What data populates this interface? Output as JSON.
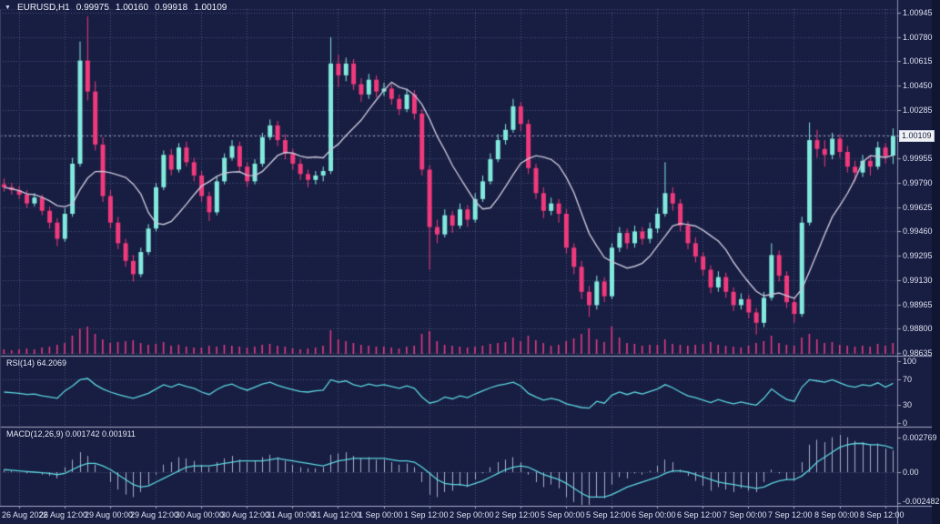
{
  "title": {
    "dropdown_icon": "▼",
    "symbol": "EURUSD,H1",
    "open": "0.99975",
    "high": "1.00160",
    "low": "0.99918",
    "close": "1.00109"
  },
  "main_panel": {
    "price_labels": [
      "1.00945",
      "1.00780",
      "1.00615",
      "1.00450",
      "1.00285",
      "0.99955",
      "0.99790",
      "0.99625",
      "0.99460",
      "0.99295",
      "0.99130",
      "0.98965",
      "0.98800",
      "0.98635"
    ],
    "current_price": "1.00109"
  },
  "rsi_panel": {
    "label": "RSI(14) 64.2069",
    "axis_labels": [
      "100",
      "70",
      "30",
      "0"
    ]
  },
  "macd_panel": {
    "label": "MACD(12,26,9) 0.001742 0.001911",
    "axis_labels": [
      "0.002769",
      "0.00",
      "-0.002482"
    ]
  },
  "colors": {
    "background": "#181d42",
    "grid": "#4d5579",
    "bull": "#82e9dd",
    "bear": "#f03a7c",
    "volume": "#de3b82",
    "ma_line": "#c9c7d9",
    "indicator_line": "#5cd6e0",
    "macd_histogram": "#a7afc6",
    "separator": "#a8aec8",
    "axis_line": "#8b93b0",
    "axis_text": "#dce1f0",
    "price_line": "#9aa2bd",
    "price_tag_bg": "#f1f2f6",
    "price_tag_text": "#141a3c"
  },
  "chart_data": {
    "type": "candlestick",
    "symbol": "EURUSD",
    "timeframe": "H1",
    "last_ohlc": {
      "open": 0.99975,
      "high": 1.0016,
      "low": 0.99918,
      "close": 1.00109
    },
    "price_axis": {
      "min": 0.98635,
      "max": 1.00945,
      "step": 0.00165
    },
    "x_axis": {
      "labels": [
        "26 Aug 2022",
        "26 Aug 12:00",
        "29 Aug 00:00",
        "29 Aug 12:00",
        "30 Aug 00:00",
        "30 Aug 12:00",
        "31 Aug 00:00",
        "31 Aug 12:00",
        "1 Sep 00:00",
        "1 Sep 12:00",
        "2 Sep 00:00",
        "2 Sep 12:00",
        "5 Sep 00:00",
        "5 Sep 12:00",
        "6 Sep 00:00",
        "6 Sep 12:00",
        "7 Sep 00:00",
        "7 Sep 12:00",
        "8 Sep 00:00",
        "8 Sep 12:00"
      ],
      "grid_bar_indices": [
        2,
        8,
        14,
        20,
        26,
        32,
        38,
        44,
        50,
        56,
        62,
        68,
        74,
        80,
        86,
        92,
        98,
        104,
        110,
        116
      ]
    },
    "candles": [
      [
        0.9978,
        0.9982,
        0.9973,
        0.9976
      ],
      [
        0.9976,
        0.9979,
        0.9971,
        0.9974
      ],
      [
        0.9974,
        0.9977,
        0.9968,
        0.9971
      ],
      [
        0.9971,
        0.9974,
        0.9962,
        0.9965
      ],
      [
        0.9965,
        0.9972,
        0.9963,
        0.9969
      ],
      [
        0.9969,
        0.9971,
        0.9957,
        0.996
      ],
      [
        0.996,
        0.9963,
        0.9948,
        0.9952
      ],
      [
        0.9952,
        0.9955,
        0.9936,
        0.9941
      ],
      [
        0.9941,
        0.9962,
        0.9939,
        0.9958
      ],
      [
        0.9958,
        0.9996,
        0.9956,
        0.9992
      ],
      [
        0.9992,
        1.0075,
        0.999,
        1.0062
      ],
      [
        1.0062,
        1.0092,
        1.0035,
        1.0041
      ],
      [
        1.0041,
        1.0048,
        1.0001,
        1.0005
      ],
      [
        1.0005,
        1.001,
        0.9966,
        0.997
      ],
      [
        0.997,
        0.9974,
        0.9948,
        0.9952
      ],
      [
        0.9952,
        0.9956,
        0.9934,
        0.9938
      ],
      [
        0.9938,
        0.9941,
        0.9922,
        0.9926
      ],
      [
        0.9926,
        0.993,
        0.9912,
        0.9917
      ],
      [
        0.9917,
        0.9935,
        0.9915,
        0.9932
      ],
      [
        0.9932,
        0.9951,
        0.993,
        0.9948
      ],
      [
        0.9948,
        0.9979,
        0.9946,
        0.9976
      ],
      [
        0.9976,
        1.0001,
        0.9974,
        0.9998
      ],
      [
        0.9998,
        1.0002,
        0.9984,
        0.9988
      ],
      [
        0.9988,
        1.0006,
        0.9986,
        1.0003
      ],
      [
        1.0003,
        1.0007,
        0.999,
        0.9993
      ],
      [
        0.9993,
        0.9996,
        0.998,
        0.9984
      ],
      [
        0.9984,
        0.9987,
        0.9966,
        0.997
      ],
      [
        0.997,
        0.9973,
        0.9953,
        0.9959
      ],
      [
        0.9959,
        0.9983,
        0.9957,
        0.998
      ],
      [
        0.998,
        0.9999,
        0.9978,
        0.9996
      ],
      [
        0.9996,
        1.0008,
        0.9994,
        1.0004
      ],
      [
        1.0004,
        1.0007,
        0.9987,
        0.999
      ],
      [
        0.999,
        0.9993,
        0.9976,
        0.998
      ],
      [
        0.998,
        0.9995,
        0.9978,
        0.9992
      ],
      [
        0.9992,
        1.0013,
        0.999,
        1.001
      ],
      [
        1.001,
        1.0022,
        1.0008,
        1.0018
      ],
      [
        1.0018,
        1.0021,
        1.0004,
        1.0008
      ],
      [
        1.0008,
        1.0012,
        0.9995,
        0.9999
      ],
      [
        0.9999,
        1.0002,
        0.9988,
        0.9992
      ],
      [
        0.9992,
        0.9995,
        0.9981,
        0.9985
      ],
      [
        0.9985,
        0.9988,
        0.9976,
        0.9981
      ],
      [
        0.9981,
        0.9987,
        0.9978,
        0.9984
      ],
      [
        0.9984,
        0.999,
        0.998,
        0.9987
      ],
      [
        0.9987,
        1.0078,
        0.9985,
        1.006
      ],
      [
        1.006,
        1.0066,
        1.0044,
        1.0052
      ],
      [
        1.0052,
        1.0064,
        1.0048,
        1.006
      ],
      [
        1.006,
        1.0063,
        1.0042,
        1.0046
      ],
      [
        1.0046,
        1.005,
        1.0034,
        1.0039
      ],
      [
        1.0039,
        1.0053,
        1.0036,
        1.0049
      ],
      [
        1.0049,
        1.0052,
        1.0037,
        1.0041
      ],
      [
        1.0041,
        1.0047,
        1.0038,
        1.0043
      ],
      [
        1.0043,
        1.0046,
        1.0032,
        1.0036
      ],
      [
        1.0036,
        1.0039,
        1.0025,
        1.0029
      ],
      [
        1.0029,
        1.0043,
        1.0027,
        1.0039
      ],
      [
        1.0039,
        1.0042,
        1.0022,
        1.0026
      ],
      [
        1.0026,
        1.0029,
        0.9984,
        0.9988
      ],
      [
        0.9988,
        0.9991,
        0.992,
        0.9949
      ],
      [
        0.9949,
        0.9954,
        0.9938,
        0.9944
      ],
      [
        0.9944,
        0.9961,
        0.9942,
        0.9957
      ],
      [
        0.9957,
        0.996,
        0.9945,
        0.995
      ],
      [
        0.995,
        0.9965,
        0.9948,
        0.9961
      ],
      [
        0.9961,
        0.9964,
        0.9949,
        0.9954
      ],
      [
        0.9954,
        0.9972,
        0.9952,
        0.9968
      ],
      [
        0.9968,
        0.9984,
        0.9966,
        0.998
      ],
      [
        0.998,
        0.9999,
        0.9978,
        0.9995
      ],
      [
        0.9995,
        1.0012,
        0.9993,
        1.0008
      ],
      [
        1.0008,
        1.0019,
        1.0005,
        1.0015
      ],
      [
        1.0015,
        1.0036,
        1.0013,
        1.0031
      ],
      [
        1.0031,
        1.0034,
        1.0014,
        1.0019
      ],
      [
        1.0019,
        1.0022,
        0.9985,
        0.9989
      ],
      [
        0.9989,
        0.9992,
        0.9968,
        0.9972
      ],
      [
        0.9972,
        0.9976,
        0.9955,
        0.996
      ],
      [
        0.996,
        0.9969,
        0.9957,
        0.9965
      ],
      [
        0.9965,
        0.9968,
        0.9952,
        0.9958
      ],
      [
        0.9958,
        0.9961,
        0.9931,
        0.9935
      ],
      [
        0.9935,
        0.9938,
        0.9917,
        0.9922
      ],
      [
        0.9922,
        0.9926,
        0.99,
        0.9905
      ],
      [
        0.9905,
        0.9909,
        0.9888,
        0.9896
      ],
      [
        0.9896,
        0.9916,
        0.9893,
        0.9912
      ],
      [
        0.9912,
        0.9915,
        0.9898,
        0.9902
      ],
      [
        0.9902,
        0.9938,
        0.99,
        0.9935
      ],
      [
        0.9935,
        0.9949,
        0.9932,
        0.9945
      ],
      [
        0.9945,
        0.9948,
        0.9934,
        0.9938
      ],
      [
        0.9938,
        0.995,
        0.9935,
        0.9946
      ],
      [
        0.9946,
        0.9949,
        0.9937,
        0.9941
      ],
      [
        0.9941,
        0.9952,
        0.9938,
        0.9948
      ],
      [
        0.9948,
        0.9962,
        0.9945,
        0.9958
      ],
      [
        0.9958,
        0.9993,
        0.9956,
        0.9972
      ],
      [
        0.9972,
        0.9976,
        0.996,
        0.9965
      ],
      [
        0.9965,
        0.9968,
        0.9946,
        0.995
      ],
      [
        0.995,
        0.9953,
        0.9934,
        0.9938
      ],
      [
        0.9938,
        0.9942,
        0.9925,
        0.9929
      ],
      [
        0.9929,
        0.9932,
        0.9916,
        0.992
      ],
      [
        0.992,
        0.9923,
        0.9904,
        0.9908
      ],
      [
        0.9908,
        0.9919,
        0.9905,
        0.9915
      ],
      [
        0.9915,
        0.9918,
        0.9901,
        0.9905
      ],
      [
        0.9905,
        0.9908,
        0.9892,
        0.9896
      ],
      [
        0.9896,
        0.9904,
        0.9893,
        0.99
      ],
      [
        0.99,
        0.9903,
        0.9887,
        0.9891
      ],
      [
        0.9891,
        0.9894,
        0.9876,
        0.9884
      ],
      [
        0.9884,
        0.9905,
        0.9881,
        0.9901
      ],
      [
        0.9901,
        0.9938,
        0.9899,
        0.993
      ],
      [
        0.993,
        0.9933,
        0.9912,
        0.9916
      ],
      [
        0.9916,
        0.9919,
        0.9894,
        0.9898
      ],
      [
        0.9898,
        0.9901,
        0.9884,
        0.989
      ],
      [
        0.989,
        0.9956,
        0.9888,
        0.9952
      ],
      [
        0.9952,
        1.002,
        0.995,
        1.0008
      ],
      [
        1.0008,
        1.0015,
        0.9996,
        1.0002
      ],
      [
        1.0002,
        1.0008,
        0.999,
        0.9998
      ],
      [
        0.9998,
        1.0013,
        0.9995,
        1.0009
      ],
      [
        1.0009,
        1.0012,
        0.9996,
        1.0
      ],
      [
        1.0,
        1.0004,
        0.9986,
        0.999
      ],
      [
        0.999,
        0.9994,
        0.998,
        0.9986
      ],
      [
        0.9986,
        0.9998,
        0.9983,
        0.9994
      ],
      [
        0.9994,
        0.9997,
        0.9984,
        0.999
      ],
      [
        0.999,
        1.0007,
        0.9988,
        1.0003
      ],
      [
        1.0003,
        1.0006,
        0.9992,
        0.9997
      ],
      [
        0.99975,
        1.0016,
        0.99918,
        1.00109
      ]
    ],
    "volume": [
      5,
      4,
      5,
      6,
      5,
      7,
      8,
      10,
      12,
      20,
      28,
      30,
      22,
      16,
      12,
      13,
      14,
      15,
      12,
      10,
      11,
      13,
      9,
      10,
      8,
      7,
      7,
      9,
      8,
      10,
      9,
      8,
      7,
      8,
      10,
      11,
      9,
      8,
      6,
      5,
      6,
      7,
      9,
      26,
      16,
      14,
      12,
      10,
      9,
      8,
      8,
      7,
      6,
      8,
      9,
      22,
      25,
      14,
      10,
      9,
      8,
      7,
      8,
      9,
      11,
      12,
      13,
      18,
      14,
      20,
      15,
      12,
      9,
      10,
      14,
      17,
      22,
      28,
      16,
      13,
      30,
      18,
      12,
      11,
      9,
      10,
      10,
      16,
      11,
      10,
      9,
      10,
      11,
      13,
      10,
      9,
      8,
      7,
      9,
      12,
      14,
      20,
      12,
      10,
      9,
      18,
      22,
      16,
      12,
      13,
      10,
      9,
      8,
      9,
      8,
      11,
      9,
      12
    ],
    "ma_period": 9,
    "indicators": {
      "rsi": {
        "period": 14,
        "current": 64.2069,
        "range": [
          0,
          100
        ],
        "levels": [
          70,
          30
        ],
        "values": [
          50,
          49,
          48,
          46,
          47,
          44,
          42,
          40,
          52,
          60,
          70,
          72,
          62,
          55,
          50,
          46,
          43,
          40,
          44,
          48,
          55,
          62,
          58,
          63,
          59,
          56,
          50,
          46,
          54,
          60,
          63,
          57,
          53,
          58,
          63,
          66,
          61,
          57,
          54,
          51,
          50,
          52,
          53,
          70,
          66,
          68,
          62,
          59,
          63,
          60,
          62,
          59,
          56,
          60,
          56,
          42,
          32,
          35,
          42,
          39,
          44,
          41,
          47,
          52,
          57,
          61,
          63,
          66,
          60,
          48,
          42,
          37,
          40,
          37,
          31,
          28,
          25,
          24,
          35,
          32,
          45,
          50,
          46,
          50,
          47,
          51,
          55,
          62,
          57,
          50,
          44,
          41,
          37,
          33,
          38,
          34,
          31,
          34,
          31,
          29,
          40,
          55,
          46,
          38,
          35,
          58,
          70,
          68,
          66,
          70,
          65,
          60,
          58,
          62,
          60,
          65,
          58,
          64.2
        ]
      },
      "macd": {
        "fast": 12,
        "slow": 26,
        "signal_period": 9,
        "current_macd": 0.001742,
        "current_signal": 0.001911,
        "scale_labels": [
          0.002769,
          0.0,
          -0.002482
        ],
        "histogram": [
          0.0002,
          0.0001,
          0,
          -0.0001,
          0,
          -0.0002,
          -0.0003,
          -0.0005,
          0.0004,
          0.001,
          0.0016,
          0.0013,
          0.0006,
          0,
          -0.0008,
          -0.0014,
          -0.0018,
          -0.002,
          -0.0016,
          -0.001,
          -0.0002,
          0.0006,
          0.0008,
          0.0012,
          0.0011,
          0.0009,
          0.0006,
          0.0004,
          0.0008,
          0.0011,
          0.0013,
          0.001,
          0.0008,
          0.0009,
          0.0012,
          0.0014,
          0.0012,
          0.0009,
          0.0006,
          0.0004,
          0.0003,
          0.0003,
          0.0004,
          0.0014,
          0.0015,
          0.0016,
          0.0013,
          0.0011,
          0.0012,
          0.001,
          0.001,
          0.0008,
          0.0006,
          0.0007,
          0.0004,
          -0.0008,
          -0.0018,
          -0.002,
          -0.0016,
          -0.0015,
          -0.0011,
          -0.0012,
          -0.0006,
          -0.0001,
          0.0004,
          0.0008,
          0.001,
          0.0012,
          0.0008,
          -0.0002,
          -0.0008,
          -0.0012,
          -0.001,
          -0.0013,
          -0.002,
          -0.0024,
          -0.0028,
          -0.0029,
          -0.002,
          -0.0021,
          -0.001,
          -0.0004,
          -0.0005,
          -0.0001,
          -0.0002,
          0.0001,
          0.0005,
          0.001,
          0.0008,
          0.0002,
          -0.0003,
          -0.0007,
          -0.0011,
          -0.0015,
          -0.0012,
          -0.0014,
          -0.0016,
          -0.0013,
          -0.0015,
          -0.0016,
          -0.0008,
          0.0002,
          -0.0001,
          -0.0006,
          -0.0007,
          0.0008,
          0.0022,
          0.0026,
          0.0024,
          0.0028,
          0.003,
          0.0028,
          0.0025,
          0.0024,
          0.0022,
          0.0023,
          0.0019,
          0.001742
        ],
        "signal": [
          0.0002,
          0.00015,
          0.0001,
          5e-05,
          0,
          -5e-05,
          -0.0001,
          -0.0002,
          -0.0001,
          0.0002,
          0.0005,
          0.0007,
          0.0007,
          0.0005,
          0.0002,
          -0.0002,
          -0.0006,
          -0.001,
          -0.0012,
          -0.0011,
          -0.0008,
          -0.0005,
          -0.0002,
          0.0001,
          0.0004,
          0.0005,
          0.0005,
          0.0005,
          0.0006,
          0.0007,
          0.0008,
          0.0009,
          0.0009,
          0.0009,
          0.0009,
          0.001,
          0.0011,
          0.001,
          0.0009,
          0.0008,
          0.0007,
          0.0006,
          0.0005,
          0.0007,
          0.0009,
          0.001,
          0.0011,
          0.0011,
          0.0011,
          0.0011,
          0.0011,
          0.001,
          0.0009,
          0.0009,
          0.0008,
          0.0004,
          -0.0001,
          -0.0006,
          -0.0009,
          -0.001,
          -0.001,
          -0.0011,
          -0.0009,
          -0.0007,
          -0.0004,
          -0.0001,
          0.0002,
          0.0004,
          0.0005,
          0.0004,
          0.0001,
          -0.0002,
          -0.0004,
          -0.0006,
          -0.0009,
          -0.0013,
          -0.0017,
          -0.002,
          -0.002,
          -0.002,
          -0.0018,
          -0.0015,
          -0.0012,
          -0.001,
          -0.0008,
          -0.0006,
          -0.0004,
          -0.0001,
          0.0001,
          0.0001,
          0,
          -0.0002,
          -0.0004,
          -0.0006,
          -0.0008,
          -0.0009,
          -0.001,
          -0.0011,
          -0.0012,
          -0.0013,
          -0.0012,
          -0.0009,
          -0.0007,
          -0.0006,
          -0.0006,
          -0.0003,
          0.0002,
          0.0008,
          0.0012,
          0.0016,
          0.002,
          0.0022,
          0.0023,
          0.0023,
          0.0022,
          0.0022,
          0.0021,
          0.001911
        ]
      }
    }
  }
}
